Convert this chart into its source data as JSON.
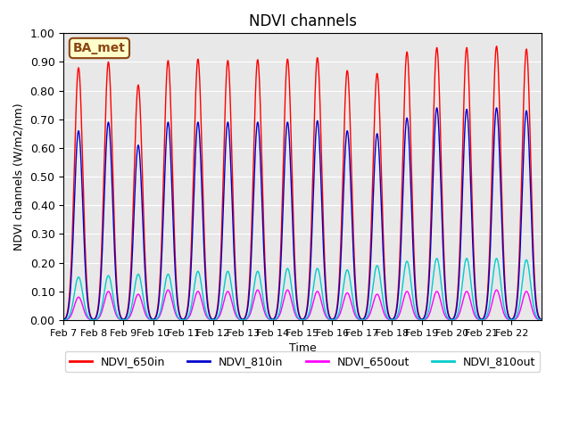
{
  "title": "NDVI channels",
  "ylabel": "NDVI channels (W/m2/nm)",
  "xlabel": "Time",
  "ylim": [
    0.0,
    1.0
  ],
  "yticks": [
    0.0,
    0.1,
    0.2,
    0.3,
    0.4,
    0.5,
    0.6,
    0.7,
    0.8,
    0.9,
    1.0
  ],
  "xticklabels": [
    "Feb 7",
    "Feb 8",
    "Feb 9",
    "Feb 10",
    "Feb 11",
    "Feb 12",
    "Feb 13",
    "Feb 14",
    "Feb 15",
    "Feb 16",
    "Feb 17",
    "Feb 18",
    "Feb 19",
    "Feb 20",
    "Feb 21",
    "Feb 22"
  ],
  "annotation_text": "BA_met",
  "annotation_bg": "#ffffcc",
  "annotation_border": "#8b4513",
  "colors": {
    "NDVI_650in": "#ff0000",
    "NDVI_810in": "#0000cc",
    "NDVI_650out": "#ff00ff",
    "NDVI_810out": "#00cccc"
  },
  "legend_labels": [
    "NDVI_650in",
    "NDVI_810in",
    "NDVI_650out",
    "NDVI_810out"
  ],
  "background_color": "#e8e8e8",
  "n_days": 16,
  "day_start": 7,
  "points_per_day": 200,
  "peaks_650in": [
    0.88,
    0.9,
    0.82,
    0.905,
    0.91,
    0.905,
    0.908,
    0.91,
    0.915,
    0.87,
    0.86,
    0.935,
    0.95,
    0.95,
    0.955,
    0.945
  ],
  "peaks_810in": [
    0.66,
    0.69,
    0.61,
    0.69,
    0.69,
    0.69,
    0.69,
    0.69,
    0.695,
    0.66,
    0.65,
    0.705,
    0.74,
    0.735,
    0.74,
    0.73
  ],
  "peaks_650out": [
    0.08,
    0.1,
    0.09,
    0.105,
    0.1,
    0.1,
    0.105,
    0.105,
    0.1,
    0.095,
    0.09,
    0.1,
    0.1,
    0.1,
    0.105,
    0.1
  ],
  "peaks_810out": [
    0.15,
    0.155,
    0.16,
    0.16,
    0.17,
    0.17,
    0.17,
    0.18,
    0.18,
    0.175,
    0.19,
    0.205,
    0.215,
    0.215,
    0.215,
    0.21
  ]
}
